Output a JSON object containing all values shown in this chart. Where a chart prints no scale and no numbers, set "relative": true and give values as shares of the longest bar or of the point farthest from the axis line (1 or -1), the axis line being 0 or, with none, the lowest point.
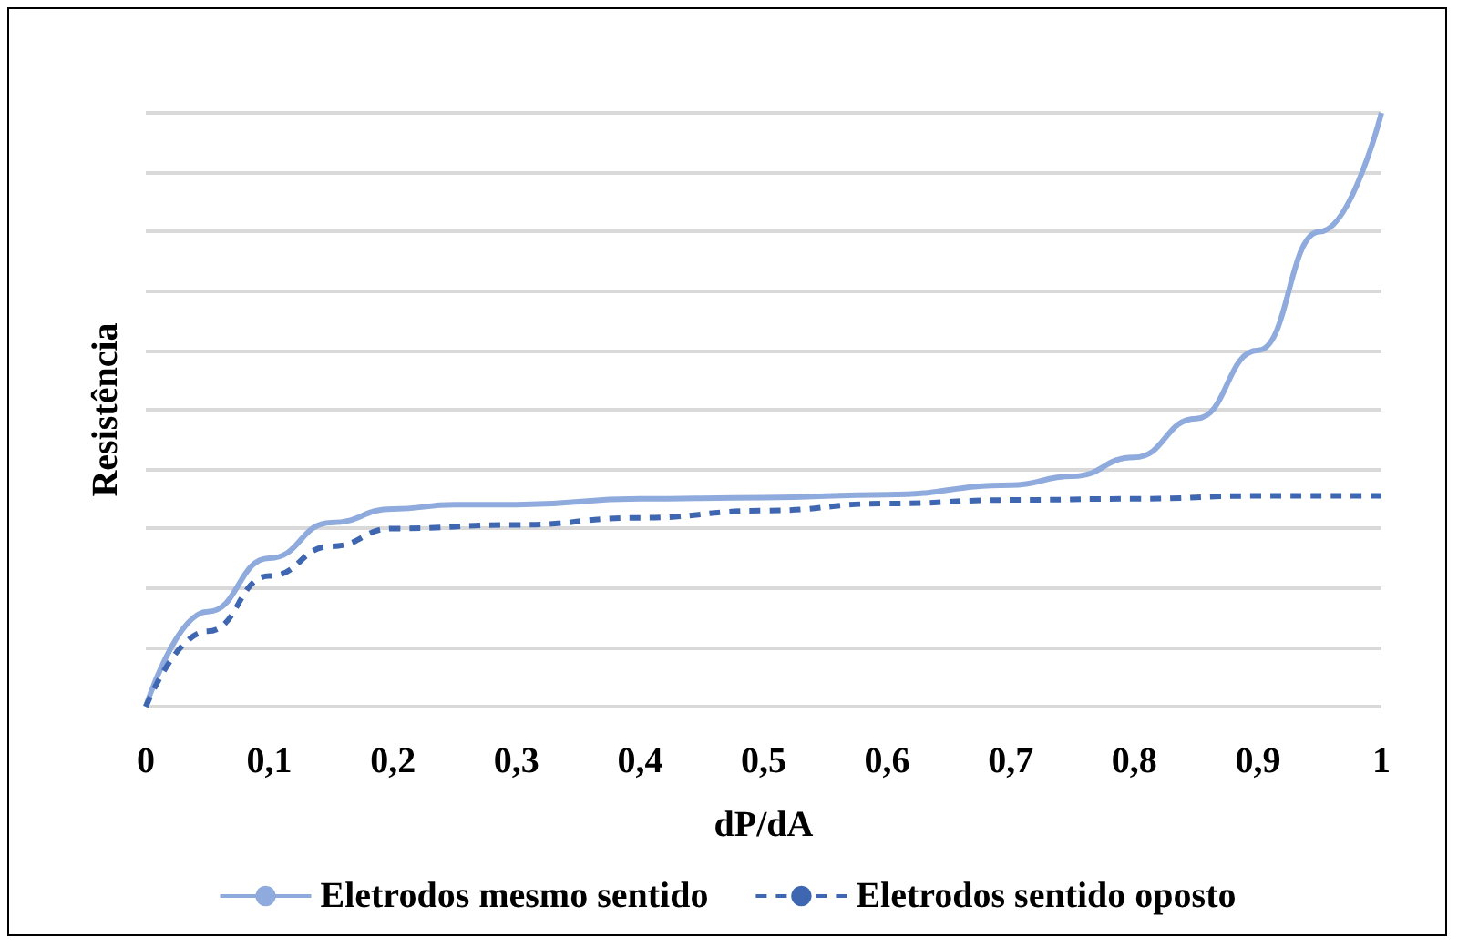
{
  "chart_data": {
    "type": "line",
    "xlabel": "dP/dA",
    "ylabel": "Resistência",
    "relative": true,
    "xlim": [
      0,
      1
    ],
    "xticks": [
      {
        "value": 0,
        "label": "0"
      },
      {
        "value": 0.1,
        "label": "0,1"
      },
      {
        "value": 0.2,
        "label": "0,2"
      },
      {
        "value": 0.3,
        "label": "0,3"
      },
      {
        "value": 0.4,
        "label": "0,4"
      },
      {
        "value": 0.5,
        "label": "0,5"
      },
      {
        "value": 0.6,
        "label": "0,6"
      },
      {
        "value": 0.7,
        "label": "0,7"
      },
      {
        "value": 0.8,
        "label": "0,8"
      },
      {
        "value": 0.9,
        "label": "0,9"
      },
      {
        "value": 1,
        "label": "1"
      }
    ],
    "series": [
      {
        "name": "Eletrodos mesmo sentido",
        "color": "#8faadc",
        "line_style": "solid",
        "x": [
          0,
          0.05,
          0.1,
          0.15,
          0.2,
          0.25,
          0.3,
          0.4,
          0.5,
          0.6,
          0.7,
          0.75,
          0.8,
          0.85,
          0.9,
          0.95,
          1
        ],
        "values": [
          0,
          0.16,
          0.25,
          0.31,
          0.333,
          0.34,
          0.34,
          0.35,
          0.352,
          0.357,
          0.373,
          0.388,
          0.42,
          0.485,
          0.6,
          0.8,
          1
        ]
      },
      {
        "name": "Eletrodos sentido oposto",
        "color": "#3f67b1",
        "line_style": "dashed",
        "x": [
          0,
          0.05,
          0.1,
          0.15,
          0.2,
          0.3,
          0.4,
          0.5,
          0.6,
          0.7,
          0.8,
          0.9,
          1
        ],
        "values": [
          0,
          0.127,
          0.22,
          0.27,
          0.3,
          0.306,
          0.318,
          0.33,
          0.342,
          0.348,
          0.35,
          0.355,
          0.355
        ]
      }
    ],
    "grid": "y",
    "legend": "bottom",
    "marker": "none"
  }
}
